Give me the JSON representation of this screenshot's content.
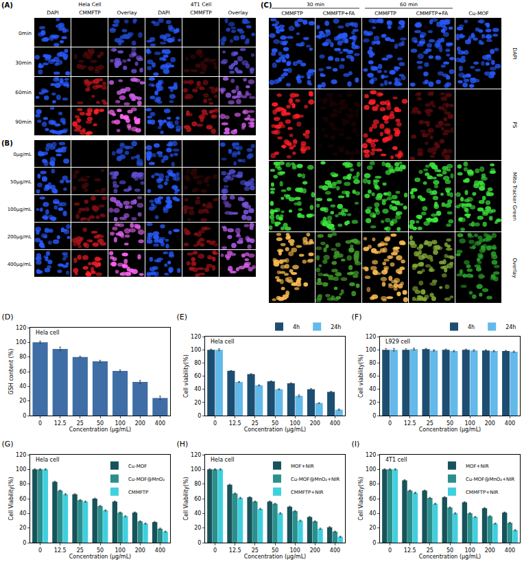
{
  "panels": {
    "A": {
      "label": "(A)",
      "groups": [
        "Hela Cell",
        "4T1 Cell"
      ],
      "columns": [
        "DAPI",
        "CMMFTP",
        "Overlay",
        "DAPI",
        "CMMFTP",
        "Overlay"
      ],
      "rows": [
        "0min",
        "30min",
        "60min",
        "90min"
      ]
    },
    "B": {
      "label": "(B)",
      "rows": [
        "0μg/mL",
        "50μg/mL",
        "100μg/mL",
        "200μg/mL",
        "400μg/mL"
      ]
    },
    "C": {
      "label": "(C)",
      "groups": [
        "30 min",
        "60 min"
      ],
      "columns": [
        "CMMFTP",
        "CMMFTP+FA",
        "CMMFTP",
        "CMMFTP+FA",
        "Cu-MOF"
      ],
      "rows": [
        "DAPI",
        "PS",
        "Mito Tracker Green",
        "Overlay"
      ]
    }
  },
  "chart_data": [
    {
      "type": "bar",
      "title": "(D)",
      "annotations": [
        "Hela cell"
      ],
      "x_label": "Concentration (μg/mL)",
      "y_label": "GSH content (%)",
      "categories": [
        "0",
        "12.5",
        "25",
        "50",
        "100",
        "200",
        "400"
      ],
      "values": [
        100,
        91,
        80,
        74,
        61,
        46,
        24
      ],
      "errors": [
        1.5,
        2.5,
        1,
        1.5,
        1.5,
        2,
        2.5
      ],
      "color": "#3f6ea6",
      "ylim": [
        0,
        120
      ],
      "yticks": [
        0,
        20,
        40,
        60,
        80,
        100,
        120
      ],
      "grid": false
    },
    {
      "type": "bar",
      "title": "(E)",
      "annotations": [
        "Hela cell"
      ],
      "x_label": "Concentration (μg/mL)",
      "y_label": "Cell viability(%)",
      "categories": [
        "0",
        "12.5",
        "25",
        "50",
        "100",
        "200",
        "400"
      ],
      "series": [
        {
          "name": "4h",
          "color": "#1d4e72",
          "values": [
            100,
            68,
            63,
            52,
            49,
            40,
            36
          ],
          "errors": [
            1,
            0.5,
            0.8,
            0.6,
            0.8,
            1,
            0.8
          ]
        },
        {
          "name": "24h",
          "color": "#63b9ea",
          "values": [
            100,
            51,
            46,
            40,
            30,
            19,
            9
          ],
          "errors": [
            1.5,
            0.6,
            0.8,
            0.7,
            1.5,
            0.6,
            1
          ]
        }
      ],
      "ylim": [
        0,
        120
      ],
      "yticks": [
        0,
        20,
        40,
        60,
        80,
        100,
        120
      ],
      "grid": false,
      "legend": "above"
    },
    {
      "type": "bar",
      "title": "(F)",
      "annotations": [
        "L929 cell"
      ],
      "x_label": "Concentration (μg/mL)",
      "y_label": "Cell viability(%)",
      "categories": [
        "0",
        "12.5",
        "25",
        "50",
        "100",
        "200",
        "400"
      ],
      "series": [
        {
          "name": "4h",
          "color": "#1d4e72",
          "values": [
            100,
            100,
            101,
            100,
            100,
            99,
            98
          ],
          "errors": [
            2,
            1.5,
            1,
            1,
            1,
            1,
            1
          ]
        },
        {
          "name": "24h",
          "color": "#63b9ea",
          "values": [
            100,
            101,
            99,
            98,
            99,
            98,
            97
          ],
          "errors": [
            2,
            1.5,
            1,
            1,
            1,
            1,
            1
          ]
        }
      ],
      "ylim": [
        0,
        120
      ],
      "yticks": [
        0,
        20,
        40,
        60,
        80,
        100,
        120
      ],
      "grid": false,
      "legend": "above"
    },
    {
      "type": "bar",
      "title": "(G)",
      "annotations": [
        "Hela cell"
      ],
      "x_label": "Concentration (μg/mL)",
      "y_label": "Cell Viability(%)",
      "categories": [
        "0",
        "12.5",
        "25",
        "50",
        "100",
        "200",
        "400"
      ],
      "series": [
        {
          "name": "Cu-MOF",
          "color": "#17535a",
          "values": [
            100,
            83,
            66,
            60,
            56,
            41,
            28
          ],
          "errors": [
            0.8,
            0.8,
            0.8,
            0.8,
            0.8,
            0.8,
            0.8
          ]
        },
        {
          "name": "Cu-MOF@MnO₂",
          "color": "#2b8f8c",
          "values": [
            100,
            71,
            58,
            50,
            41,
            29,
            19
          ],
          "errors": [
            0.8,
            0.8,
            0.8,
            0.8,
            0.8,
            0.8,
            0.8
          ]
        },
        {
          "name": "CMMFTP",
          "color": "#3fd0e0",
          "values": [
            100,
            66,
            56,
            44,
            36,
            26,
            15
          ],
          "errors": [
            0.8,
            0.8,
            0.8,
            0.8,
            0.8,
            0.8,
            0.8
          ]
        }
      ],
      "ylim": [
        0,
        120
      ],
      "yticks": [
        0,
        20,
        40,
        60,
        80,
        100,
        120
      ],
      "grid": false,
      "legend": "top right"
    },
    {
      "type": "bar",
      "title": "(H)",
      "annotations": [
        "Hela cell"
      ],
      "x_label": "Concentration (μg/mL)",
      "y_label": "Cell Viability(%)",
      "categories": [
        "0",
        "12.5",
        "25",
        "50",
        "100",
        "200",
        "400"
      ],
      "series": [
        {
          "name": "MOF+NIR",
          "color": "#17535a",
          "values": [
            100,
            79,
            62,
            56,
            49,
            35,
            21
          ],
          "errors": [
            0.8,
            0.8,
            0.8,
            0.8,
            0.8,
            0.8,
            0.8
          ]
        },
        {
          "name": "Cu-MOF@MnO₂+NIR",
          "color": "#2b8f8c",
          "values": [
            100,
            67,
            56,
            53,
            43,
            29,
            15
          ],
          "errors": [
            0.8,
            0.8,
            0.8,
            0.8,
            0.8,
            0.8,
            0.8
          ]
        },
        {
          "name": "CMMFTP+NIR",
          "color": "#3fd0e0",
          "values": [
            100,
            61,
            46,
            40,
            30,
            19,
            8
          ],
          "errors": [
            0.8,
            0.8,
            0.8,
            0.8,
            0.8,
            0.8,
            0.8
          ]
        }
      ],
      "ylim": [
        0,
        120
      ],
      "yticks": [
        0,
        20,
        40,
        60,
        80,
        100,
        120
      ],
      "grid": false,
      "legend": "top right"
    },
    {
      "type": "bar",
      "title": "(I)",
      "annotations": [
        "4T1 cell"
      ],
      "x_label": "Concentration (μg/mL)",
      "y_label": "Cell Viability(%)",
      "categories": [
        "0",
        "12.5",
        "25",
        "50",
        "100",
        "200",
        "400"
      ],
      "series": [
        {
          "name": "MOF+NIR",
          "color": "#17535a",
          "values": [
            100,
            85,
            71,
            62,
            55,
            47,
            41
          ],
          "errors": [
            0.8,
            0.8,
            0.8,
            0.8,
            0.8,
            0.8,
            0.8
          ]
        },
        {
          "name": "Cu-MOF@MnO₂+NIR",
          "color": "#2b8f8c",
          "values": [
            100,
            71,
            61,
            48,
            40,
            36,
            27
          ],
          "errors": [
            0.8,
            0.8,
            0.8,
            0.8,
            0.8,
            0.8,
            0.8
          ]
        },
        {
          "name": "CMMFTP+NIR",
          "color": "#3fd0e0",
          "values": [
            100,
            68,
            53,
            40,
            35,
            26,
            17
          ],
          "errors": [
            0.8,
            0.8,
            0.8,
            0.8,
            0.8,
            0.8,
            0.8
          ]
        }
      ],
      "ylim": [
        0,
        120
      ],
      "yticks": [
        0,
        20,
        40,
        60,
        80,
        100,
        120
      ],
      "grid": false,
      "legend": "top right"
    }
  ]
}
